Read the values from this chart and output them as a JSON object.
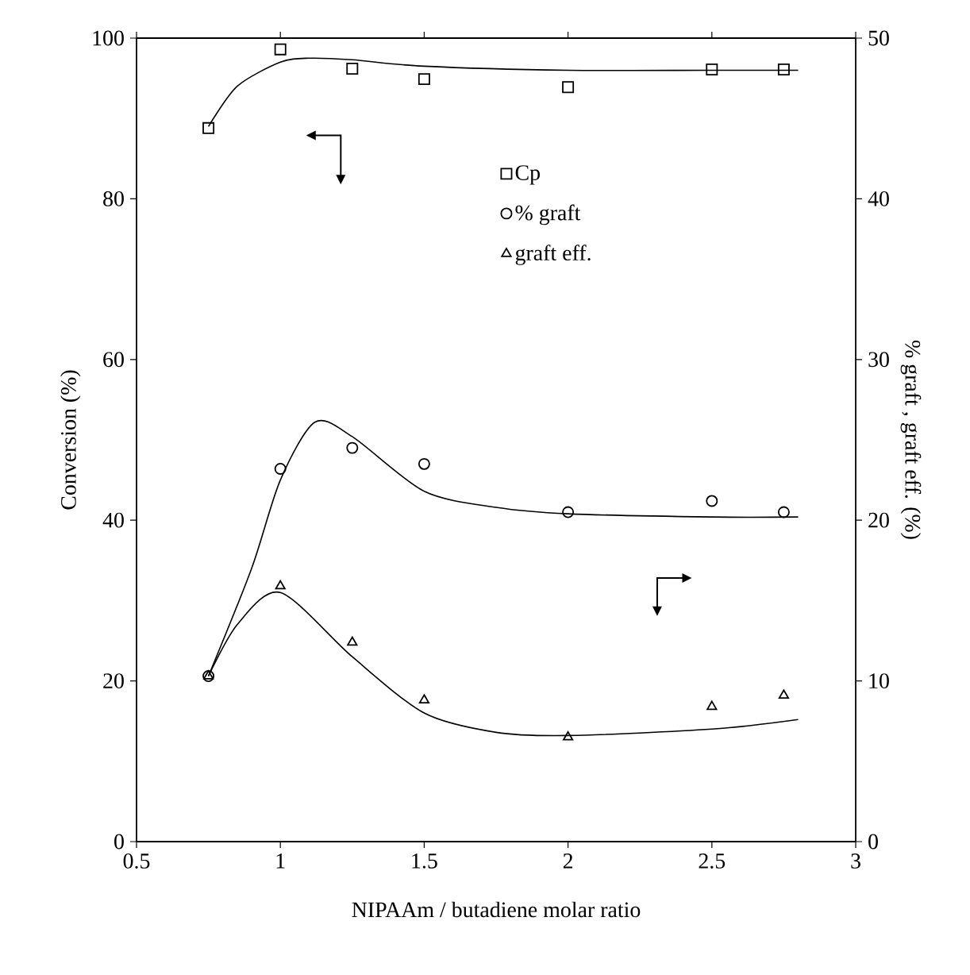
{
  "chart_data": {
    "type": "scatter",
    "xlabel": "NIPAAm / butadiene molar ratio",
    "ylabel": "Conversion (%)",
    "y2label": "% graft , graft eff. (%)",
    "xlim": [
      0.5,
      3
    ],
    "xticks": [
      0.5,
      1,
      1.5,
      2,
      2.5,
      3
    ],
    "ylim": [
      0,
      100
    ],
    "yticks": [
      0,
      20,
      40,
      60,
      80,
      100
    ],
    "y2lim": [
      0,
      50
    ],
    "y2ticks": [
      0,
      10,
      20,
      30,
      40,
      50
    ],
    "grid": false,
    "legend": "top",
    "series": [
      {
        "name": "Cp",
        "marker": "square",
        "color": "#000000",
        "x": [
          0.75,
          1,
          1.25,
          1.5,
          2,
          2.5,
          2.75
        ],
        "values": [
          88.8,
          98.6,
          96.2,
          94.9,
          93.9,
          96.1,
          96.1
        ]
      },
      {
        "name": "% graft",
        "marker": "circle",
        "axis": "y2",
        "color": "#000000",
        "x": [
          0.75,
          1,
          1.25,
          1.5,
          2,
          2.5,
          2.75
        ],
        "values": [
          10.3,
          23.2,
          24.5,
          23.5,
          20.5,
          21.2,
          20.5
        ]
      },
      {
        "name": "graft eff.",
        "marker": "triangle",
        "axis": "y2",
        "color": "#000000",
        "x": [
          0.75,
          1,
          1.25,
          1.5,
          2,
          2.5,
          2.75
        ],
        "values": [
          10.3,
          15.9,
          12.4,
          8.8,
          6.5,
          8.4,
          9.1
        ]
      },
      {
        "type": "line",
        "color": "#000000",
        "x": [
          0.75,
          0.85,
          1.0,
          1.1,
          1.25,
          1.5,
          2,
          2.5,
          2.8
        ],
        "values": [
          89,
          94,
          97,
          97.5,
          97.3,
          96.5,
          96,
          96,
          96
        ]
      },
      {
        "type": "line",
        "axis": "y2",
        "color": "#000000",
        "x": [
          0.75,
          0.9,
          1.0,
          1.12,
          1.25,
          1.5,
          1.75,
          2,
          2.5,
          2.8
        ],
        "values": [
          10.3,
          17,
          22.5,
          26.1,
          25.2,
          21.8,
          20.8,
          20.4,
          20.2,
          20.2
        ]
      },
      {
        "type": "line",
        "axis": "y2",
        "color": "#000000",
        "x": [
          0.75,
          0.85,
          1.0,
          1.25,
          1.5,
          1.75,
          2,
          2.5,
          2.8
        ],
        "values": [
          10.3,
          13.5,
          15.5,
          11.5,
          8.0,
          6.8,
          6.6,
          7.0,
          7.6
        ]
      }
    ]
  }
}
